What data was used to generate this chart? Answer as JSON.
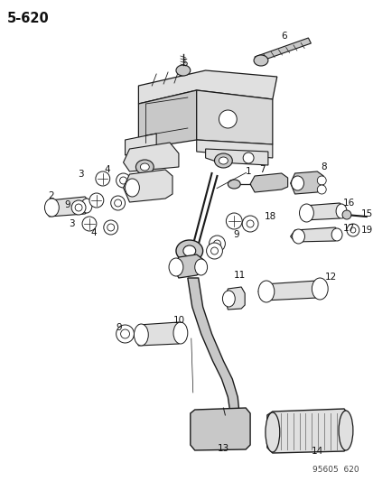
{
  "title": "5-620",
  "footer": "95605  620",
  "bg_color": "#ffffff",
  "lc": "#1a1a1a",
  "fc_gray": "#c8c8c8",
  "fc_light": "#e0e0e0",
  "fig_width": 4.14,
  "fig_height": 5.33,
  "dpi": 100
}
